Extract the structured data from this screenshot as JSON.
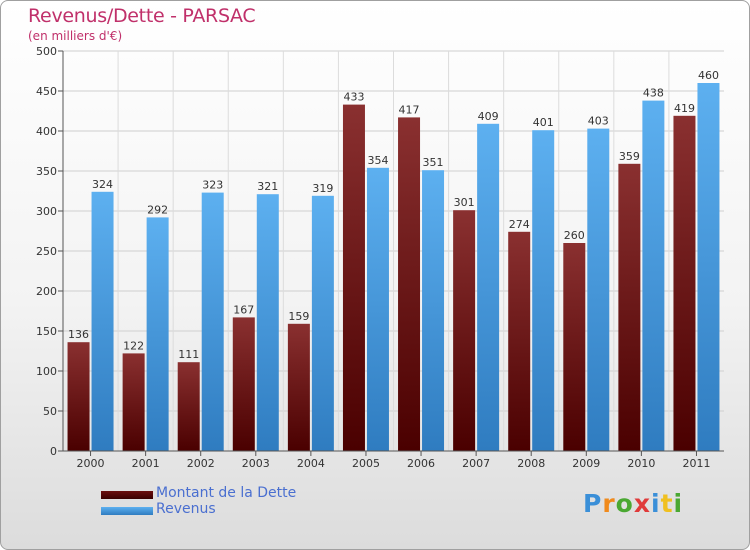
{
  "header": {
    "title": "Revenus/Dette - PARSAC",
    "subtitle": "(en milliers d'€)"
  },
  "chart_data": {
    "type": "bar",
    "title": "Revenus/Dette - PARSAC",
    "subtitle": "(en milliers d'€)",
    "xlabel": "",
    "ylabel": "",
    "ylim": [
      0,
      500
    ],
    "yticks": [
      0,
      50,
      100,
      150,
      200,
      250,
      300,
      350,
      400,
      450,
      500
    ],
    "grid": true,
    "categories": [
      "2000",
      "2001",
      "2002",
      "2003",
      "2004",
      "2005",
      "2006",
      "2007",
      "2008",
      "2009",
      "2010",
      "2011"
    ],
    "series": [
      {
        "name": "Montant de la Dette",
        "color": "#7a1f1f",
        "values": [
          136,
          122,
          111,
          167,
          159,
          433,
          417,
          301,
          274,
          260,
          359,
          419
        ]
      },
      {
        "name": "Revenus",
        "color": "#4a9fe0",
        "values": [
          324,
          292,
          323,
          321,
          319,
          354,
          351,
          409,
          401,
          403,
          438,
          460
        ]
      }
    ],
    "legend_position": "bottom-left"
  },
  "legend": [
    {
      "label": "Montant de la Dette",
      "color": "#6b0f0f"
    },
    {
      "label": "Revenus",
      "color": "#4aa3e8"
    }
  ],
  "logo": {
    "letters": [
      "P",
      "r",
      "o",
      "x",
      "i",
      "t",
      "i"
    ],
    "colors": [
      "#3a8fd8",
      "#f08a1c",
      "#4aa832",
      "#e03a3a",
      "#3a8fd8",
      "#f0c020",
      "#4aa832"
    ]
  }
}
